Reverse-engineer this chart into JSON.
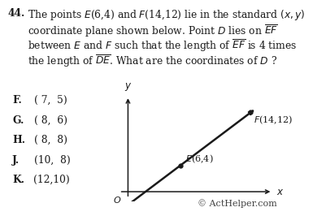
{
  "question_num": "44.",
  "q_line1": "The points $E$(6,4) and $F$(14,12) lie in the standard $(x,y)$",
  "q_line2": "coordinate plane shown below. Point $D$ lies on $\\overline{EF}$",
  "q_line3": "between $E$ and $F$ such that the length of $\\overline{EF}$ is 4 times",
  "q_line4": "the length of $\\overline{DE}$. What are the coordinates of $D$ ?",
  "choice_labels": [
    "F.",
    "G.",
    "H.",
    "J.",
    "K."
  ],
  "choice_values": [
    "( 7,  5)",
    "( 8,  6)",
    "( 8,  8)",
    "(10,  8)",
    "(12,10)"
  ],
  "point_E": [
    6,
    4
  ],
  "point_F": [
    14,
    12
  ],
  "line_color": "#1a1a1a",
  "axis_color": "#1a1a1a",
  "bg_color": "#ffffff",
  "text_color": "#1a1a1a",
  "copyright_text": "© ActHelper.com",
  "font_size_q": 8.8,
  "font_size_choices": 8.8,
  "font_size_copyright": 8.0
}
